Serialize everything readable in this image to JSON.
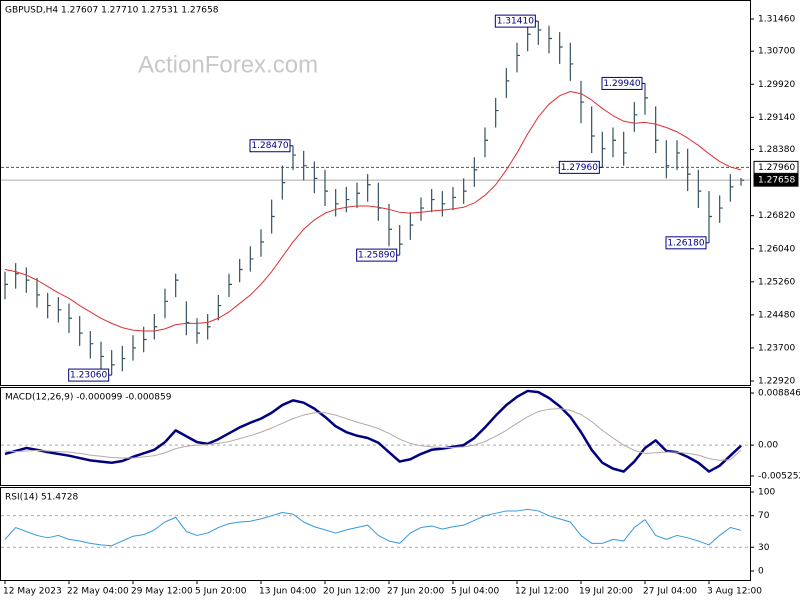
{
  "chart_data": [
    {
      "type": "ohlc",
      "title": "GBPUSD,H4  1.27607 1.27710 1.27531 1.27658",
      "watermark": "ActionForex.com",
      "categories": [
        "12 May 2023",
        null,
        null,
        null,
        null,
        null,
        "22 May 04:00",
        null,
        null,
        null,
        null,
        null,
        "29 May 12:00",
        null,
        null,
        null,
        null,
        null,
        "5 Jun 20:00",
        null,
        null,
        null,
        null,
        null,
        "13 Jun 04:00",
        null,
        null,
        null,
        null,
        null,
        "20 Jun 12:00",
        null,
        null,
        null,
        null,
        null,
        "27 Jun 20:00",
        null,
        null,
        null,
        null,
        null,
        "5 Jul 04:00",
        null,
        null,
        null,
        null,
        null,
        "12 Jul 12:00",
        null,
        null,
        null,
        null,
        null,
        "19 Jul 20:00",
        null,
        null,
        null,
        null,
        null,
        "27 Jul 04:00",
        null,
        null,
        null,
        null,
        null,
        "3 Aug 12:00",
        null,
        null,
        null
      ],
      "ohlc": {
        "color": "#34505e",
        "high": [
          1.255,
          1.257,
          1.256,
          1.2535,
          1.25,
          1.249,
          1.2475,
          1.2445,
          1.241,
          1.2385,
          1.2365,
          1.2375,
          1.24,
          1.242,
          1.245,
          1.251,
          1.2545,
          1.248,
          1.244,
          1.245,
          1.2495,
          1.2545,
          1.258,
          1.261,
          1.265,
          1.272,
          1.28,
          1.2847,
          1.2835,
          1.281,
          1.279,
          1.2745,
          1.275,
          1.276,
          1.278,
          1.276,
          1.271,
          1.266,
          1.269,
          1.2725,
          1.2745,
          1.274,
          1.275,
          1.277,
          1.282,
          1.289,
          1.296,
          1.303,
          1.309,
          1.3135,
          1.3141,
          1.313,
          1.3115,
          1.309,
          1.3,
          1.294,
          1.288,
          1.289,
          1.288,
          1.295,
          1.2994,
          1.294,
          1.286,
          1.286,
          1.284,
          1.279,
          1.274,
          1.273,
          1.278,
          1.2771
        ],
        "low": [
          1.2485,
          1.251,
          1.25,
          1.2465,
          1.244,
          1.243,
          1.2405,
          1.2375,
          1.2345,
          1.232,
          1.2306,
          1.2315,
          1.234,
          1.236,
          1.239,
          1.244,
          1.249,
          1.24,
          1.238,
          1.239,
          1.2435,
          1.249,
          1.2525,
          1.255,
          1.2585,
          1.264,
          1.272,
          1.279,
          1.2765,
          1.2735,
          1.2705,
          1.268,
          1.269,
          1.27,
          1.2715,
          1.267,
          1.261,
          1.2589,
          1.2625,
          1.267,
          1.269,
          1.268,
          1.2695,
          1.271,
          1.275,
          1.282,
          1.289,
          1.296,
          1.302,
          1.307,
          1.3085,
          1.3065,
          1.304,
          1.3,
          1.29,
          1.283,
          1.2796,
          1.282,
          1.28,
          1.288,
          1.292,
          1.283,
          1.277,
          1.279,
          1.274,
          1.27,
          1.2618,
          1.2665,
          1.2715,
          1.2753
        ],
        "close": [
          1.252,
          1.2545,
          1.253,
          1.2495,
          1.247,
          1.246,
          1.244,
          1.2405,
          1.238,
          1.235,
          1.233,
          1.2345,
          1.237,
          1.239,
          1.242,
          1.248,
          1.253,
          1.243,
          1.2405,
          1.242,
          1.247,
          1.252,
          1.2555,
          1.258,
          1.262,
          1.268,
          1.276,
          1.2825,
          1.28,
          1.277,
          1.274,
          1.271,
          1.272,
          1.2735,
          1.2755,
          1.27,
          1.265,
          1.2615,
          1.266,
          1.27,
          1.272,
          1.271,
          1.2725,
          1.274,
          1.279,
          1.286,
          1.293,
          1.3,
          1.306,
          1.311,
          1.312,
          1.31,
          1.308,
          1.304,
          1.295,
          1.287,
          1.284,
          1.286,
          1.283,
          1.292,
          1.296,
          1.286,
          1.28,
          1.283,
          1.278,
          1.274,
          1.268,
          1.27,
          1.275,
          1.27658
        ]
      },
      "series": [
        {
          "color": "#e03030",
          "width": 1,
          "values": [
            1.2555,
            1.255,
            1.2542,
            1.253,
            1.2515,
            1.25,
            1.2487,
            1.247,
            1.2455,
            1.244,
            1.2428,
            1.2418,
            1.2412,
            1.241,
            1.241,
            1.2415,
            1.2425,
            1.2428,
            1.2428,
            1.243,
            1.244,
            1.2455,
            1.2475,
            1.2495,
            1.252,
            1.255,
            1.2585,
            1.262,
            1.265,
            1.2672,
            1.2688,
            1.2697,
            1.2702,
            1.2705,
            1.2705,
            1.2702,
            1.2697,
            1.269,
            1.2688,
            1.269,
            1.2693,
            1.2695,
            1.2698,
            1.2702,
            1.2712,
            1.273,
            1.2755,
            1.279,
            1.283,
            1.2875,
            1.2915,
            1.2945,
            1.2965,
            1.2975,
            1.297,
            1.2955,
            1.2935,
            1.2918,
            1.2905,
            1.29,
            1.2902,
            1.2898,
            1.289,
            1.288,
            1.2865,
            1.2848,
            1.2828,
            1.281,
            1.2797,
            1.279
          ]
        }
      ],
      "annotations": [
        {
          "label": "1.23060",
          "value": 1.2306,
          "x": 10
        },
        {
          "label": "1.28470",
          "value": 1.2847,
          "x": 27
        },
        {
          "label": "1.25890",
          "value": 1.2589,
          "x": 37
        },
        {
          "label": "1.31410",
          "value": 1.3141,
          "x": 50
        },
        {
          "label": "1.27960",
          "value": 1.2796,
          "x": 56
        },
        {
          "label": "1.29940",
          "value": 1.2994,
          "x": 60
        },
        {
          "label": "1.26180",
          "value": 1.2618,
          "x": 66
        }
      ],
      "hlines": [
        {
          "value": 1.2796,
          "label": "1.27960",
          "style": "dashed"
        },
        {
          "value": 1.27658,
          "label": "1.27658",
          "style": "solid"
        }
      ],
      "ylim": [
        1.22826,
        1.31908
      ],
      "yticks": [
        {
          "value": 1.3146,
          "label": "1.31460"
        },
        {
          "value": 1.307,
          "label": "1.30700"
        },
        {
          "value": 1.2992,
          "label": "1.29920"
        },
        {
          "value": 1.2914,
          "label": "1.29140"
        },
        {
          "value": 1.2838,
          "label": "1.28380"
        },
        {
          "value": 1.2682,
          "label": "1.26820"
        },
        {
          "value": 1.2604,
          "label": "1.26040"
        },
        {
          "value": 1.2526,
          "label": "1.25260"
        },
        {
          "value": 1.2448,
          "label": "1.24480"
        },
        {
          "value": 1.237,
          "label": "1.23700"
        },
        {
          "value": 1.2292,
          "label": "1.22920"
        }
      ]
    },
    {
      "type": "line",
      "title": "MACD(12,26,9) -0.000099 -0.000859",
      "ylim": [
        -0.00678,
        0.00987
      ],
      "yticks": [
        0.008846,
        {
          "value": 0,
          "label": "0.00"
        },
        -0.005252
      ],
      "levels": [
        0
      ],
      "series": [
        {
          "color": "#000080",
          "width": 2.5,
          "values": [
            -0.0015,
            -0.001,
            -0.0005,
            -0.0008,
            -0.0012,
            -0.0015,
            -0.0018,
            -0.0022,
            -0.0026,
            -0.0028,
            -0.003,
            -0.0027,
            -0.002,
            -0.0014,
            -0.0008,
            0.0005,
            0.0025,
            0.0015,
            0.0005,
            0.0002,
            0.001,
            0.002,
            0.003,
            0.0038,
            0.0045,
            0.0055,
            0.0068,
            0.0076,
            0.0072,
            0.0062,
            0.0048,
            0.0032,
            0.0022,
            0.0016,
            0.0012,
            0.0004,
            -0.0012,
            -0.0028,
            -0.0024,
            -0.0015,
            -0.0008,
            -0.0006,
            -0.0003,
            0.0,
            0.0012,
            0.003,
            0.005,
            0.0068,
            0.0082,
            0.0092,
            0.009,
            0.008,
            0.0066,
            0.0048,
            0.0022,
            -0.0008,
            -0.003,
            -0.004,
            -0.0045,
            -0.0028,
            -0.0005,
            0.0008,
            -0.001,
            -0.0012,
            -0.002,
            -0.003,
            -0.0045,
            -0.0035,
            -0.0018,
            -9.9e-05
          ]
        },
        {
          "color": "#b8a8a8",
          "width": 1,
          "values": [
            -0.001,
            -0.0011,
            -0.001,
            -0.0009,
            -0.001,
            -0.0011,
            -0.0012,
            -0.0014,
            -0.0017,
            -0.0019,
            -0.0021,
            -0.0022,
            -0.0022,
            -0.002,
            -0.0018,
            -0.0013,
            -0.0006,
            -0.0002,
            0.0,
            0.0001,
            0.0003,
            0.0006,
            0.0011,
            0.0016,
            0.0022,
            0.0029,
            0.0037,
            0.0045,
            0.0051,
            0.0055,
            0.0055,
            0.0051,
            0.0045,
            0.0039,
            0.0034,
            0.0028,
            0.002,
            0.001,
            0.0003,
            -0.0001,
            -0.0003,
            -0.0004,
            -0.0004,
            -0.0003,
            0.0,
            0.0006,
            0.0015,
            0.0025,
            0.0037,
            0.0048,
            0.0057,
            0.0061,
            0.0062,
            0.0059,
            0.0052,
            0.004,
            0.0025,
            0.0012,
            0.0,
            -0.0009,
            -0.0014,
            -0.0013,
            -0.0012,
            -0.0012,
            -0.0014,
            -0.0017,
            -0.0023,
            -0.0026,
            -0.0025,
            -0.000859
          ]
        }
      ]
    },
    {
      "type": "line",
      "title": "RSI(14) 51.4728",
      "ylim": [
        -11.4,
        106.3
      ],
      "yticks": [
        100,
        70,
        30,
        0
      ],
      "levels": [
        70,
        30
      ],
      "series": [
        {
          "color": "#3399dd",
          "width": 1,
          "values": [
            40,
            55,
            50,
            45,
            42,
            45,
            40,
            38,
            35,
            33,
            32,
            38,
            44,
            46,
            52,
            62,
            68,
            50,
            45,
            48,
            55,
            60,
            62,
            63,
            66,
            70,
            74,
            72,
            62,
            56,
            52,
            48,
            52,
            55,
            58,
            45,
            38,
            35,
            48,
            55,
            57,
            53,
            56,
            58,
            64,
            70,
            73,
            76,
            76,
            78,
            76,
            70,
            66,
            62,
            45,
            35,
            35,
            40,
            38,
            55,
            65,
            45,
            40,
            45,
            42,
            38,
            33,
            45,
            55,
            51.4728
          ]
        }
      ]
    }
  ]
}
